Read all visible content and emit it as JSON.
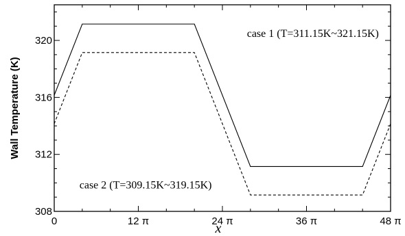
{
  "chart_data": {
    "type": "line",
    "xlabel": "x",
    "ylabel": "Wall Temperature (K)",
    "xlim": [
      0,
      48
    ],
    "ylim": [
      308,
      322.5
    ],
    "x_ticks": [
      {
        "value": 0,
        "label": "0"
      },
      {
        "value": 12,
        "label": "12 π"
      },
      {
        "value": 24,
        "label": "24 π"
      },
      {
        "value": 36,
        "label": "36 π"
      },
      {
        "value": 48,
        "label": "48 π"
      }
    ],
    "y_ticks": [
      {
        "value": 308,
        "label": "308"
      },
      {
        "value": 312,
        "label": "312"
      },
      {
        "value": 316,
        "label": "316"
      },
      {
        "value": 320,
        "label": "320"
      }
    ],
    "x_unit": "π",
    "series": [
      {
        "style": "solid",
        "x": [
          0,
          4,
          20,
          28,
          44,
          48
        ],
        "y": [
          316.15,
          321.15,
          321.15,
          311.15,
          311.15,
          316.15
        ]
      },
      {
        "style": "dashed",
        "x": [
          0,
          4,
          20,
          28,
          44,
          48
        ],
        "y": [
          314.15,
          319.15,
          319.15,
          309.15,
          309.15,
          314.15
        ]
      }
    ],
    "annotations": [
      {
        "text": "case 1 (T=311.15K~321.15K)",
        "x": 27.5,
        "y": 320.25
      },
      {
        "text": "case 2 (T=309.15K~319.15K)",
        "x": 3.6,
        "y": 309.6
      }
    ],
    "grid": false
  }
}
